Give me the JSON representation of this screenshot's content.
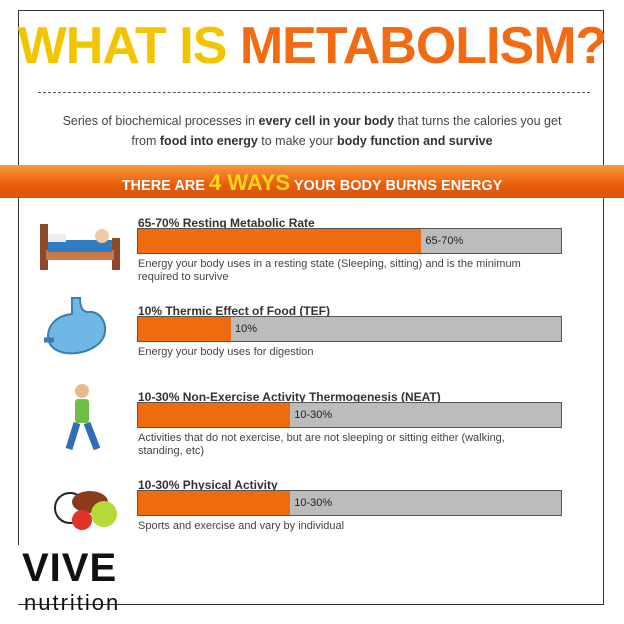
{
  "header": {
    "title_part1": "WHAT IS",
    "title_part2": "METABOLISM?",
    "subtitle": [
      {
        "text": "Series of biochemical processes in ",
        "bold": false
      },
      {
        "text": "every cell in your body",
        "bold": true
      },
      {
        "text": " that turns the calories you get from ",
        "bold": false
      },
      {
        "text": "food into energy",
        "bold": true
      },
      {
        "text": " to make your ",
        "bold": false
      },
      {
        "text": "body function and survive",
        "bold": true
      }
    ]
  },
  "banner": {
    "part1": "THERE ARE",
    "part2": "4 WAYS",
    "part3": "YOUR BODY BURNS ENERGY"
  },
  "items": [
    {
      "title": "65-70% Resting Metabolic Rate",
      "bar_label": "65-70%",
      "description": "Energy your body uses in a resting state (Sleeping, sitting) and is the minimum required to survive"
    },
    {
      "title": "10% Thermic Effect of Food (TEF)",
      "bar_label": "10%",
      "description": "Energy your body uses for digestion"
    },
    {
      "title": "10-30% Non-Exercise Activity Thermogenesis (NEAT)",
      "bar_label": "10-30%",
      "description": "Activities that do not exercise, but are not sleeping or sitting either (walking, standing, etc)"
    },
    {
      "title": "10-30% Physical Activity",
      "bar_label": "10-30%",
      "description": "Sports and exercise and vary by individual"
    }
  ],
  "logo": {
    "name": "VIVE",
    "tagline": "nutrition"
  }
}
